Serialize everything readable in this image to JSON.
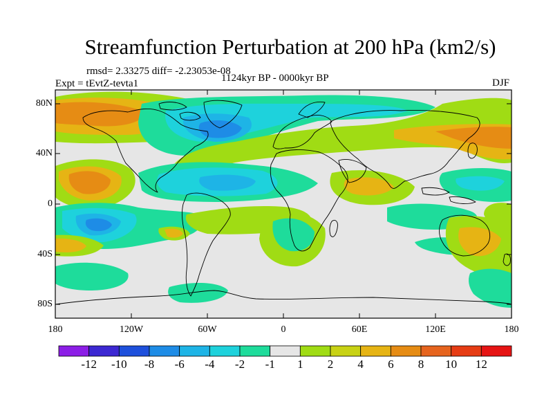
{
  "title": "Streamfunction Perturbation at 200 hPa (km2/s)",
  "stats_line": "rmsd= 2.33275  diff= -2.23053e-08",
  "experiment": "Expt = tEvtZ-tevta1",
  "period": "1124kyr BP - 0000kyr BP",
  "season": "DJF",
  "map": {
    "lat_labels": [
      "80N",
      "40N",
      "0",
      "40S",
      "80S"
    ],
    "lon_labels": [
      "180",
      "120W",
      "60W",
      "0",
      "60E",
      "120E",
      "180"
    ]
  },
  "colorbar": {
    "labels": [
      "-12",
      "-10",
      "-8",
      "-6",
      "-4",
      "-2",
      "-1",
      "1",
      "2",
      "4",
      "6",
      "8",
      "10",
      "12"
    ],
    "colors": [
      "#8c1ee6",
      "#3c28d2",
      "#1e50dc",
      "#1e8ce6",
      "#1eb4e6",
      "#1ed2dc",
      "#1edc9b",
      "#e6e6e6",
      "#a0dc14",
      "#c8d214",
      "#e6b414",
      "#e68c14",
      "#e6641e",
      "#e63c14",
      "#e61414"
    ]
  },
  "field_colors": {
    "neutral": "#e6e6e6",
    "pos1": "#a0dc14",
    "pos2": "#c8d214",
    "pos3": "#e6b414",
    "pos4": "#e68c14",
    "neg1": "#1edc9b",
    "neg2": "#1ed2dc",
    "neg3": "#1eb4e6",
    "neg4": "#1e8ce6",
    "neg5": "#1e50dc"
  }
}
